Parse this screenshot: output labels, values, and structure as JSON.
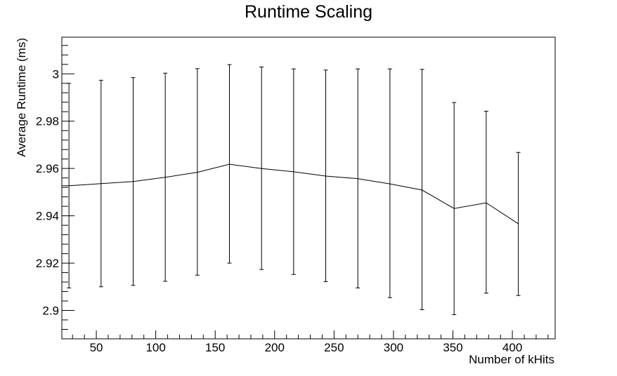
{
  "chart_data": {
    "type": "line",
    "title": "Runtime Scaling",
    "xlabel": "Number of kHits",
    "ylabel": "Average Runtime (ms)",
    "xlim": [
      21,
      436
    ],
    "ylim": [
      2.888,
      3.0155
    ],
    "x_ticks": [
      50,
      100,
      150,
      200,
      250,
      300,
      350,
      400
    ],
    "y_ticks": [
      2.9,
      2.92,
      2.94,
      2.96,
      2.98,
      3
    ],
    "x_tick_labels": [
      "50",
      "100",
      "150",
      "200",
      "250",
      "300",
      "350",
      "400"
    ],
    "y_tick_labels": [
      "2.9",
      "2.92",
      "2.94",
      "2.96",
      "2.98",
      "3"
    ],
    "grid": false,
    "legend": "none",
    "series": [
      {
        "x": [
          27,
          54,
          81,
          108,
          135,
          162,
          189,
          216,
          243,
          270,
          297,
          324,
          351,
          378,
          405
        ],
        "y": [
          2.9527,
          2.9536,
          2.9545,
          2.9563,
          2.9584,
          2.9618,
          2.96,
          2.9586,
          2.9568,
          2.9557,
          2.9535,
          2.9509,
          2.9431,
          2.9455,
          2.9366
        ],
        "y_err_low": [
          2.9095,
          2.91,
          2.9106,
          2.9123,
          2.9149,
          2.92,
          2.9173,
          2.9152,
          2.9122,
          2.9095,
          2.9054,
          2.9003,
          2.8982,
          2.9073,
          2.9063
        ],
        "y_err_high": [
          2.996,
          2.9973,
          2.9984,
          3.0003,
          3.0022,
          3.0039,
          3.0029,
          3.0021,
          3.0016,
          3.0021,
          3.0021,
          3.0019,
          2.9879,
          2.9842,
          2.9668
        ]
      }
    ],
    "line_color": "#000000"
  }
}
